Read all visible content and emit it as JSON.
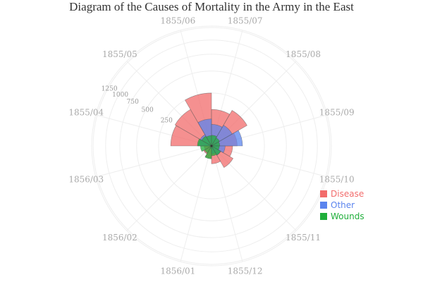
{
  "chart_data": {
    "type": "polar-bar",
    "title": "Diagram of the Causes of Mortality in the Army in the East",
    "categories": [
      "1855/04",
      "1855/05",
      "1855/06",
      "1855/07",
      "1855/08",
      "1855/09",
      "1855/10",
      "1855/11",
      "1855/12",
      "1856/01",
      "1856/02",
      "1856/03"
    ],
    "radial_ticks": [
      250,
      500,
      750,
      1000,
      1250
    ],
    "radial_scale": "sqrt",
    "direction": "clockwise",
    "legend_position": "right",
    "grid": true,
    "series": [
      {
        "name": "Disease",
        "color": "#f26b6b",
        "values": [
          477,
          508,
          802,
          382,
          483,
          189,
          128,
          178,
          91,
          42,
          24,
          15
        ]
      },
      {
        "name": "Other",
        "color": "#5b84ee",
        "values": [
          48,
          49,
          209,
          134,
          164,
          276,
          53,
          33,
          18,
          2,
          0,
          0
        ]
      },
      {
        "name": "Wounds",
        "color": "#1fae3a",
        "values": [
          57,
          37,
          31,
          33,
          25,
          20,
          18,
          32,
          28,
          48,
          19,
          35
        ]
      }
    ]
  }
}
